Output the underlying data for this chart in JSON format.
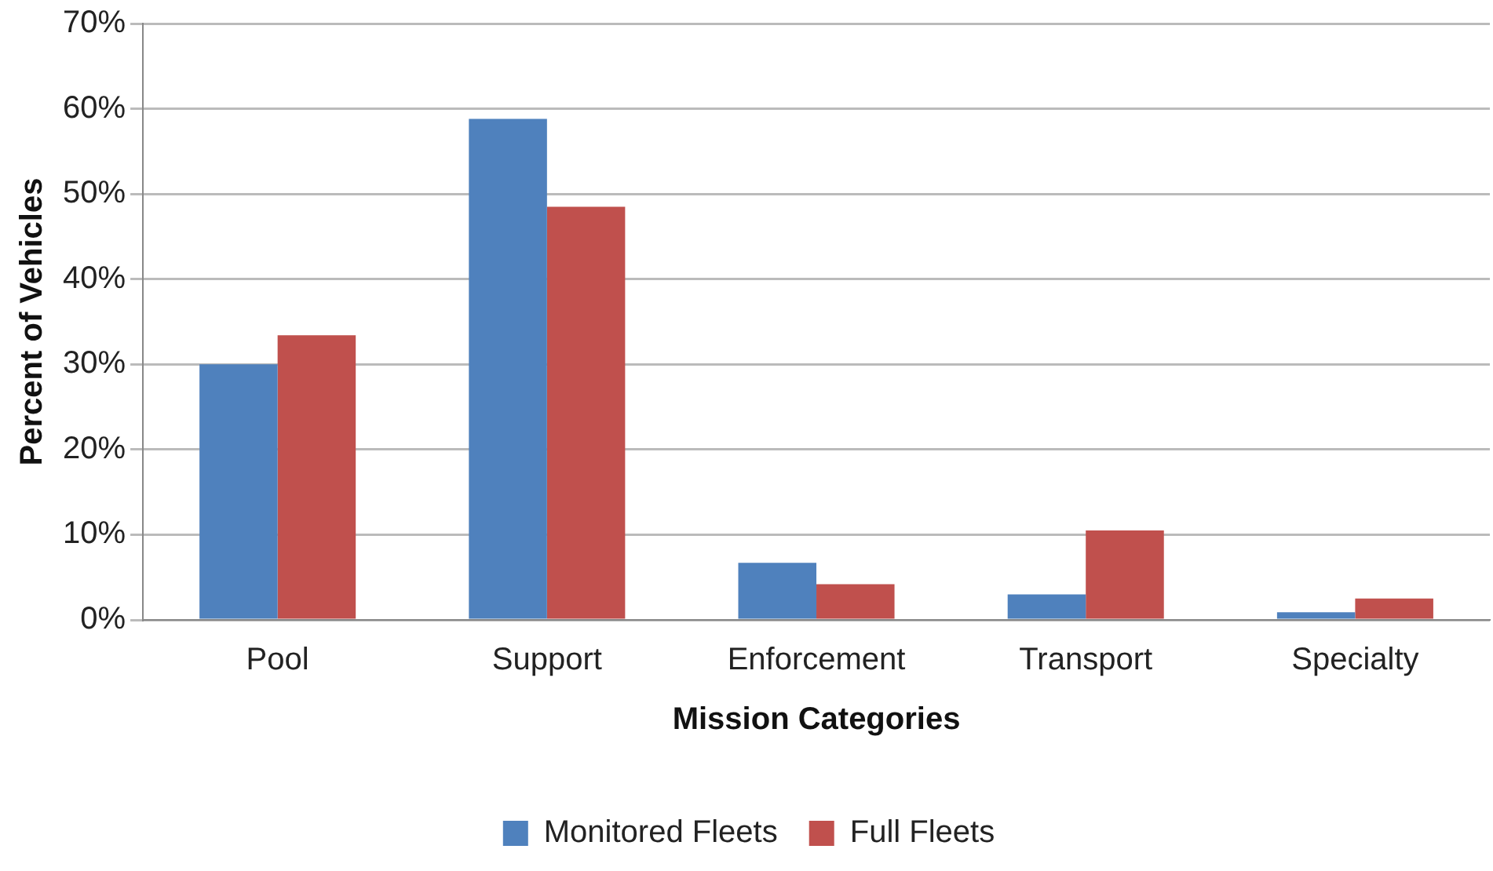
{
  "chart_data": {
    "type": "bar",
    "xlabel": "Mission Categories",
    "ylabel": "Percent of Vehicles",
    "categories": [
      "Pool",
      "Support",
      "Enforcement",
      "Transport",
      "Specialty"
    ],
    "series": [
      {
        "name": "Monitored Fleets",
        "color": "#4f81bd",
        "values": [
          30,
          58.8,
          6.7,
          3,
          0.9
        ]
      },
      {
        "name": "Full Fleets",
        "color": "#c0504d",
        "values": [
          33.4,
          48.5,
          4.2,
          10.5,
          2.5
        ]
      }
    ],
    "ylim": [
      0,
      70
    ],
    "yticks": [
      {
        "value": 0,
        "label": "0%"
      },
      {
        "value": 10,
        "label": "10%"
      },
      {
        "value": 20,
        "label": "20%"
      },
      {
        "value": 30,
        "label": "30%"
      },
      {
        "value": 40,
        "label": "40%"
      },
      {
        "value": 50,
        "label": "50%"
      },
      {
        "value": 60,
        "label": "60%"
      },
      {
        "value": 70,
        "label": "70%"
      }
    ],
    "grid": "y",
    "legend": "bottom"
  }
}
